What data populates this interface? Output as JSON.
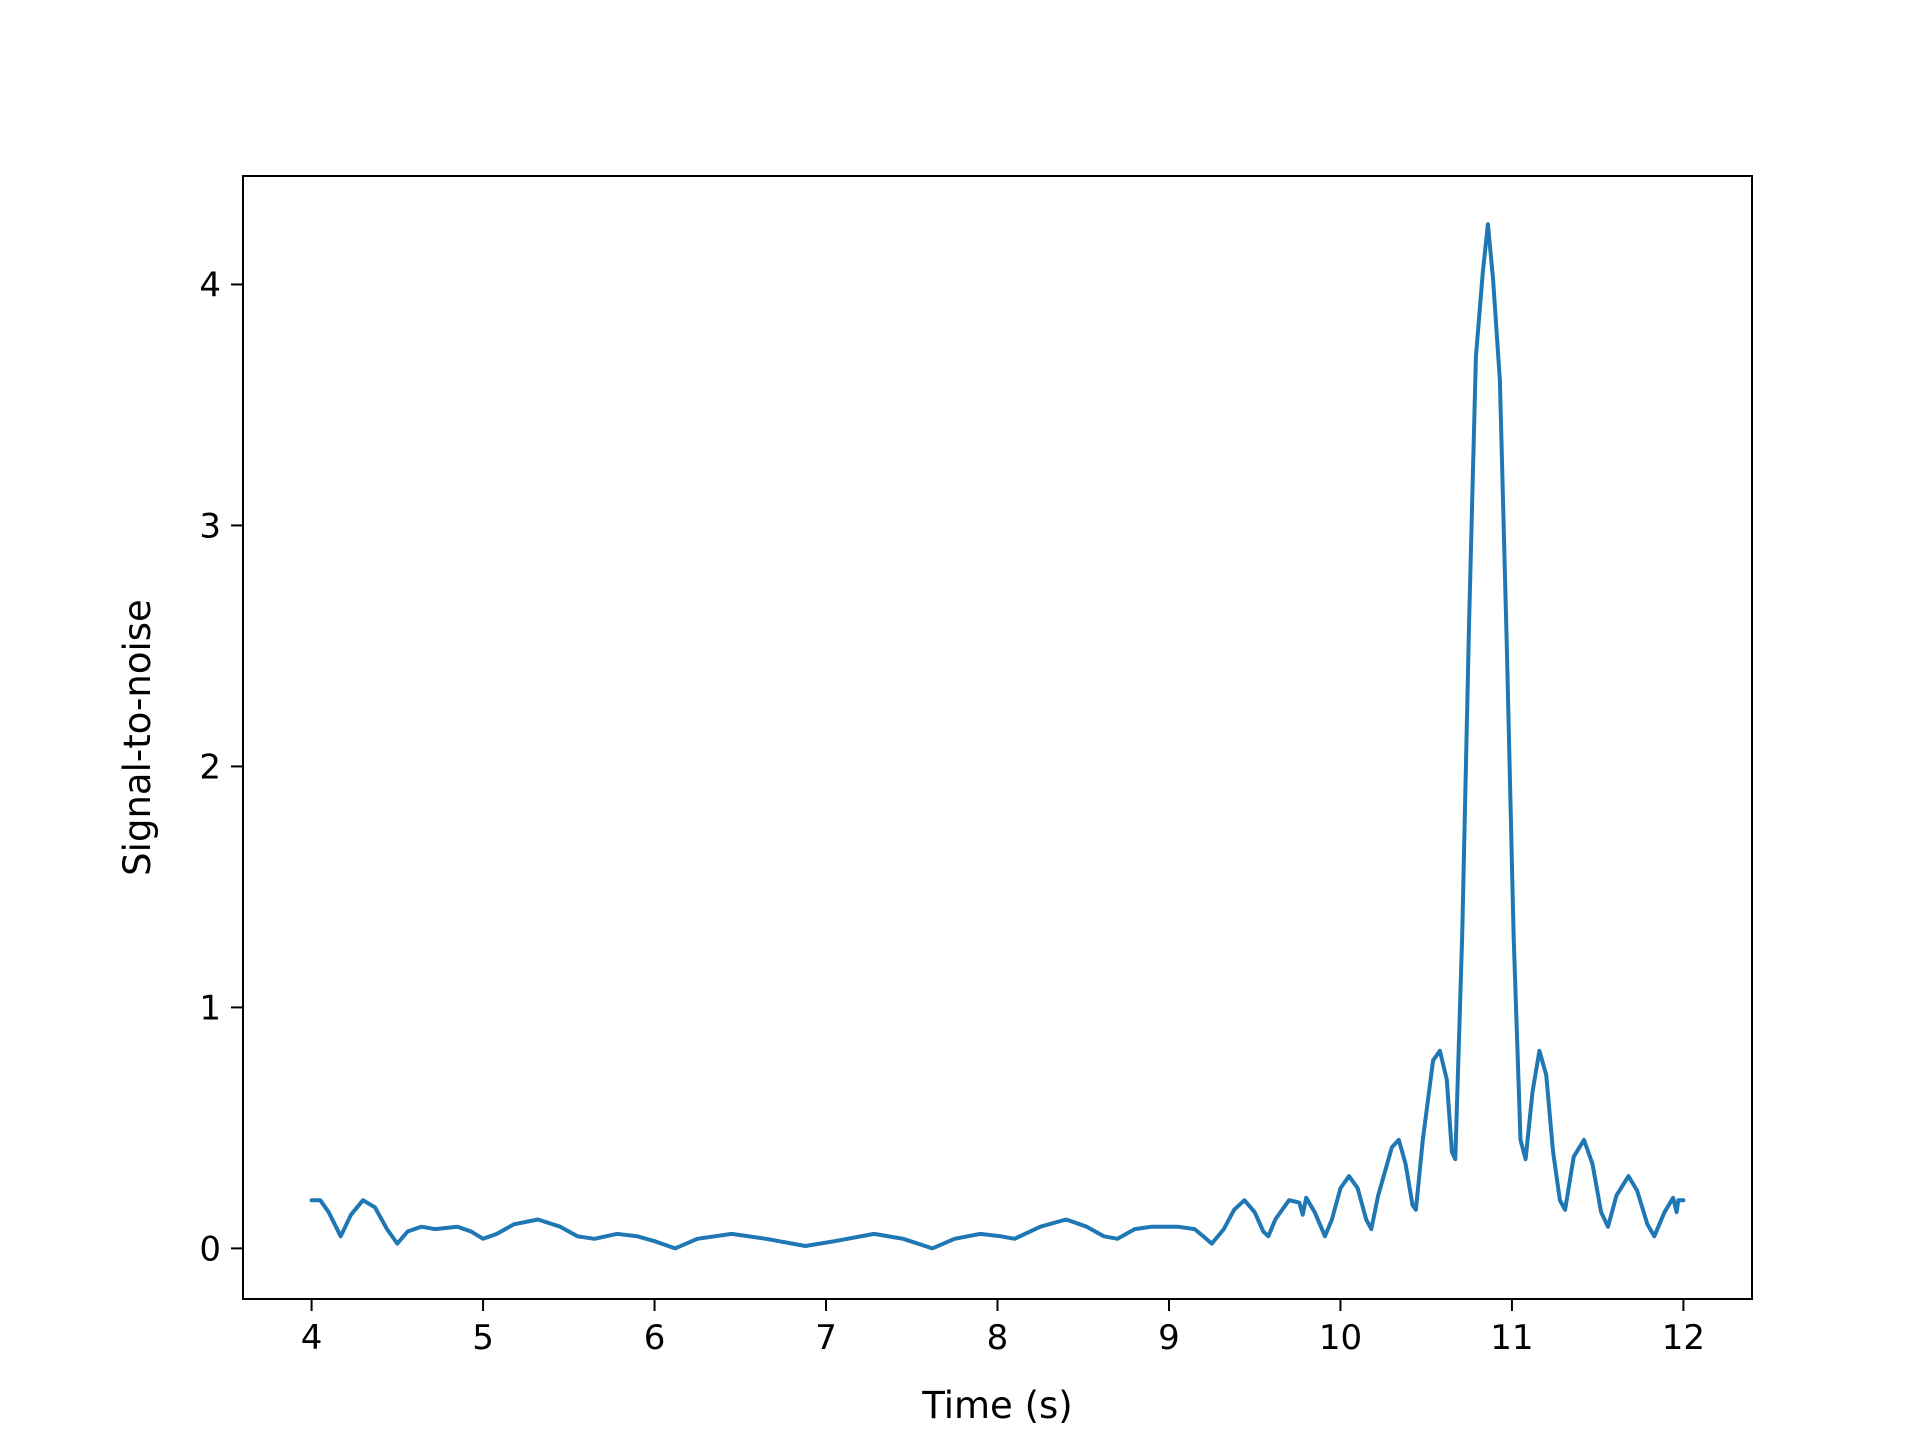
{
  "chart_data": {
    "type": "line",
    "title": "",
    "xlabel": "Time (s)",
    "ylabel": "Signal-to-noise",
    "xlim": [
      3.6,
      12.4
    ],
    "ylim": [
      -0.21,
      4.45
    ],
    "xticks": [
      4,
      5,
      6,
      7,
      8,
      9,
      10,
      11,
      12
    ],
    "yticks": [
      0,
      1,
      2,
      3,
      4
    ],
    "xtick_labels": [
      "4",
      "5",
      "6",
      "7",
      "8",
      "9",
      "10",
      "11",
      "12"
    ],
    "ytick_labels": [
      "0",
      "1",
      "2",
      "3",
      "4"
    ],
    "grid": false,
    "legend": null,
    "series": [
      {
        "color": "#1f77b4",
        "points": [
          [
            4.0,
            0.2
          ],
          [
            4.05,
            0.2
          ],
          [
            4.1,
            0.15
          ],
          [
            4.17,
            0.05
          ],
          [
            4.23,
            0.14
          ],
          [
            4.3,
            0.2
          ],
          [
            4.37,
            0.17
          ],
          [
            4.44,
            0.08
          ],
          [
            4.5,
            0.02
          ],
          [
            4.56,
            0.07
          ],
          [
            4.64,
            0.09
          ],
          [
            4.72,
            0.08
          ],
          [
            4.85,
            0.09
          ],
          [
            4.93,
            0.07
          ],
          [
            5.0,
            0.04
          ],
          [
            5.08,
            0.06
          ],
          [
            5.18,
            0.1
          ],
          [
            5.32,
            0.12
          ],
          [
            5.45,
            0.09
          ],
          [
            5.55,
            0.05
          ],
          [
            5.65,
            0.04
          ],
          [
            5.78,
            0.06
          ],
          [
            5.9,
            0.05
          ],
          [
            6.0,
            0.03
          ],
          [
            6.12,
            0.0
          ],
          [
            6.25,
            0.04
          ],
          [
            6.45,
            0.06
          ],
          [
            6.65,
            0.04
          ],
          [
            6.88,
            0.01
          ],
          [
            7.05,
            0.03
          ],
          [
            7.28,
            0.06
          ],
          [
            7.45,
            0.04
          ],
          [
            7.62,
            0.0
          ],
          [
            7.75,
            0.04
          ],
          [
            7.9,
            0.06
          ],
          [
            8.02,
            0.05
          ],
          [
            8.1,
            0.04
          ],
          [
            8.25,
            0.09
          ],
          [
            8.4,
            0.12
          ],
          [
            8.52,
            0.09
          ],
          [
            8.62,
            0.05
          ],
          [
            8.7,
            0.04
          ],
          [
            8.8,
            0.08
          ],
          [
            8.9,
            0.09
          ],
          [
            9.05,
            0.09
          ],
          [
            9.15,
            0.08
          ],
          [
            9.2,
            0.05
          ],
          [
            9.25,
            0.02
          ],
          [
            9.32,
            0.08
          ],
          [
            9.38,
            0.16
          ],
          [
            9.44,
            0.2
          ],
          [
            9.5,
            0.15
          ],
          [
            9.55,
            0.07
          ],
          [
            9.58,
            0.05
          ],
          [
            9.62,
            0.12
          ],
          [
            9.7,
            0.2
          ],
          [
            9.76,
            0.19
          ],
          [
            9.78,
            0.14
          ],
          [
            9.8,
            0.21
          ],
          [
            9.85,
            0.15
          ],
          [
            9.91,
            0.05
          ],
          [
            9.95,
            0.12
          ],
          [
            10.0,
            0.25
          ],
          [
            10.05,
            0.3
          ],
          [
            10.1,
            0.25
          ],
          [
            10.15,
            0.12
          ],
          [
            10.18,
            0.08
          ],
          [
            10.22,
            0.22
          ],
          [
            10.3,
            0.42
          ],
          [
            10.34,
            0.45
          ],
          [
            10.38,
            0.35
          ],
          [
            10.42,
            0.18
          ],
          [
            10.44,
            0.16
          ],
          [
            10.48,
            0.45
          ],
          [
            10.54,
            0.78
          ],
          [
            10.58,
            0.82
          ],
          [
            10.62,
            0.7
          ],
          [
            10.65,
            0.4
          ],
          [
            10.67,
            0.37
          ],
          [
            10.71,
            1.3
          ],
          [
            10.75,
            2.6
          ],
          [
            10.79,
            3.7
          ],
          [
            10.83,
            4.05
          ],
          [
            10.86,
            4.25
          ],
          [
            10.89,
            4.02
          ],
          [
            10.93,
            3.6
          ],
          [
            10.97,
            2.5
          ],
          [
            11.01,
            1.3
          ],
          [
            11.05,
            0.45
          ],
          [
            11.08,
            0.37
          ],
          [
            11.12,
            0.65
          ],
          [
            11.16,
            0.82
          ],
          [
            11.2,
            0.72
          ],
          [
            11.24,
            0.4
          ],
          [
            11.28,
            0.2
          ],
          [
            11.31,
            0.16
          ],
          [
            11.36,
            0.38
          ],
          [
            11.42,
            0.45
          ],
          [
            11.47,
            0.35
          ],
          [
            11.52,
            0.15
          ],
          [
            11.56,
            0.09
          ],
          [
            11.61,
            0.22
          ],
          [
            11.68,
            0.3
          ],
          [
            11.73,
            0.24
          ],
          [
            11.79,
            0.1
          ],
          [
            11.83,
            0.05
          ],
          [
            11.89,
            0.15
          ],
          [
            11.94,
            0.21
          ],
          [
            11.96,
            0.15
          ],
          [
            11.97,
            0.2
          ],
          [
            12.0,
            0.2
          ]
        ]
      }
    ]
  }
}
